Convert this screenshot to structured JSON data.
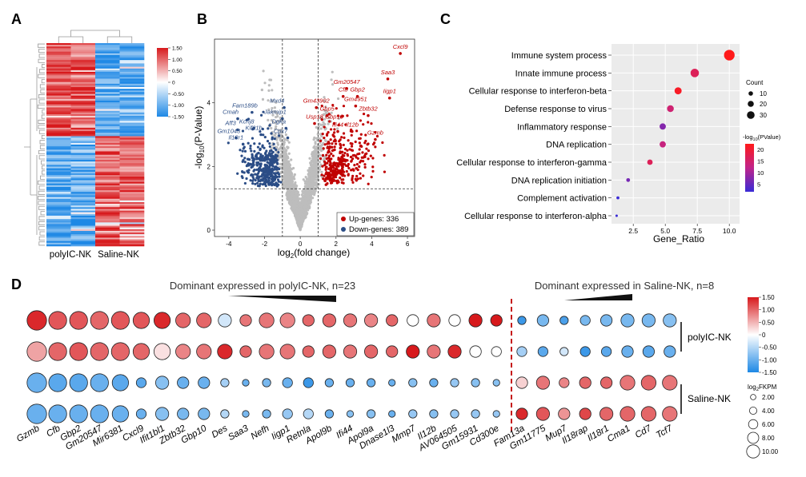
{
  "panels": {
    "A": {
      "letter": "A",
      "columns": [
        "polyIC-NK",
        "Saline-NK"
      ],
      "colorbar_ticks": [
        "1.50",
        "1.00",
        "0.50",
        "0",
        "-0.50",
        "-1.00",
        "-1.50"
      ],
      "colors": {
        "high": "#d7191c",
        "mid": "#ffffff",
        "low": "#1e88e5"
      }
    },
    "B": {
      "letter": "B",
      "chart_data": {
        "type": "scatter",
        "xlabel_pre": "log",
        "xlabel_sub": "2",
        "xlabel_post": "(fold change)",
        "ylabel_pre": "-log",
        "ylabel_sub": "10",
        "ylabel_post": "(P-Value)",
        "xticks": [
          -4,
          -2,
          0,
          2,
          4,
          6
        ],
        "yticks": [
          0,
          2,
          4
        ],
        "xlim": [
          -4.8,
          6.4
        ],
        "ylim": [
          -0.2,
          6.0
        ],
        "thresholds": {
          "x": [
            -1,
            1
          ],
          "y": 1.3
        },
        "legend": [
          {
            "label": "Up-genes: 336",
            "color": "#c00000"
          },
          {
            "label": "Down-genes: 389",
            "color": "#2b4d86"
          }
        ],
        "labels_up": [
          {
            "text": "Cxcl9",
            "x": 5.6,
            "y": 5.7
          },
          {
            "text": "Saa3",
            "x": 4.9,
            "y": 4.9
          },
          {
            "text": "Gm20547",
            "x": 2.6,
            "y": 4.6
          },
          {
            "text": "Iigp1",
            "x": 5.0,
            "y": 4.3
          },
          {
            "text": "Cfb",
            "x": 2.4,
            "y": 4.35
          },
          {
            "text": "Gbp2",
            "x": 3.2,
            "y": 4.35
          },
          {
            "text": "Gm43902",
            "x": 0.9,
            "y": 4.0
          },
          {
            "text": "Gm4951",
            "x": 3.1,
            "y": 4.05
          },
          {
            "text": "Gbp5",
            "x": 1.5,
            "y": 3.75
          },
          {
            "text": "Zbtb32",
            "x": 3.8,
            "y": 3.75
          },
          {
            "text": "Usp18",
            "x": 0.8,
            "y": 3.5
          },
          {
            "text": "Gbp10",
            "x": 1.9,
            "y": 3.5
          },
          {
            "text": "Ifi44",
            "x": 2.1,
            "y": 3.25
          },
          {
            "text": "Il12b",
            "x": 2.9,
            "y": 3.25
          },
          {
            "text": "Gzmb",
            "x": 4.2,
            "y": 3.0
          }
        ],
        "labels_down": [
          {
            "text": "Mxd4",
            "x": -1.3,
            "y": 4.0
          },
          {
            "text": "Fam189b",
            "x": -3.1,
            "y": 3.85
          },
          {
            "text": "Jakmip1",
            "x": -1.4,
            "y": 3.65
          },
          {
            "text": "Cmah",
            "x": -3.9,
            "y": 3.65
          },
          {
            "text": "Kcnj8",
            "x": -3.0,
            "y": 3.35
          },
          {
            "text": "Dgka",
            "x": -1.2,
            "y": 3.35
          },
          {
            "text": "Aff3",
            "x": -3.9,
            "y": 3.3
          },
          {
            "text": "Kif21b",
            "x": -2.6,
            "y": 3.15
          },
          {
            "text": "Cpx7",
            "x": -1.1,
            "y": 3.05
          },
          {
            "text": "Gm1043",
            "x": -4.0,
            "y": 3.05
          },
          {
            "text": "Il18r1",
            "x": -3.6,
            "y": 2.85
          }
        ]
      }
    },
    "C": {
      "letter": "C",
      "chart_data": {
        "type": "scatter",
        "xlabel": "Gene_Ratio",
        "xticks": [
          2.5,
          5.0,
          7.5,
          10.0
        ],
        "xtick_labels": [
          "2.5",
          "5.0",
          "7.5",
          "10.0"
        ],
        "xlim": [
          0.8,
          10.8
        ],
        "terms": [
          {
            "name": "Immune system process",
            "ratio": 10.0,
            "count": 32,
            "logp": 22
          },
          {
            "name": "Innate immune process",
            "ratio": 7.3,
            "count": 24,
            "logp": 17
          },
          {
            "name": "Cellular response to interferon-beta",
            "ratio": 6.0,
            "count": 19,
            "logp": 21
          },
          {
            "name": "Defense response to virus",
            "ratio": 5.4,
            "count": 18,
            "logp": 15
          },
          {
            "name": "Inflammatory response",
            "ratio": 4.8,
            "count": 16,
            "logp": 9
          },
          {
            "name": "DNA replication",
            "ratio": 4.8,
            "count": 16,
            "logp": 14
          },
          {
            "name": "Cellular response to interferon-gamma",
            "ratio": 3.8,
            "count": 13,
            "logp": 17
          },
          {
            "name": "DNA replication initiation",
            "ratio": 2.1,
            "count": 7,
            "logp": 8
          },
          {
            "name": "Complement activation",
            "ratio": 1.3,
            "count": 4,
            "logp": 4
          },
          {
            "name": "Cellular response to interferon-alpha",
            "ratio": 1.2,
            "count": 2,
            "logp": 4
          }
        ],
        "count_legend_title": "Count",
        "count_legend": [
          "10",
          "20",
          "30"
        ],
        "p_legend_title_pre": "-log",
        "p_legend_title_sub": "10",
        "p_legend_title_post": "(PValue)",
        "p_legend_ticks": [
          "20",
          "15",
          "10",
          "5"
        ],
        "p_colors": {
          "high": "#ff1a1a",
          "low": "#3a2bd6"
        }
      }
    },
    "D": {
      "letter": "D",
      "heading_left": "Dominant expressed in polyIC-NK, n=23",
      "heading_right": "Dominant expressed in Saline-NK, n=8",
      "row_group_labels": [
        "polyIC-NK",
        "Saline-NK"
      ],
      "color_legend_ticks": [
        "1.50",
        "1.00",
        "0.50",
        "0",
        "-0.50",
        "-1.00",
        "-1.50"
      ],
      "size_legend_title_pre": "log",
      "size_legend_title_sub": "2",
      "size_legend_title_post": "FKPM",
      "size_legend": [
        "2.00",
        "4.00",
        "6.00",
        "8.00",
        "10.00"
      ],
      "chart_data": {
        "type": "bubble",
        "genes": [
          "Gzmb",
          "Cfb",
          "Gbp2",
          "Gm20547",
          "Mir6381",
          "Cxcl9",
          "Ifit1bl1",
          "Zbtb32",
          "Gbp10",
          "Des",
          "Saa3",
          "Nefh",
          "Iigp1",
          "Retnla",
          "Apol9b",
          "Ifi44",
          "Apol9a",
          "Dnase1l3",
          "Mmp7",
          "Il12b",
          "AV064505",
          "Gm15931",
          "Cd300e",
          "Fam13a",
          "Gm11775",
          "Mup7",
          "Il18rap",
          "Il18r1",
          "Cma1",
          "Cd7",
          "Tcf7"
        ],
        "size": [
          [
            10,
            9,
            9,
            9,
            9,
            8,
            8,
            7,
            7,
            6,
            5,
            7,
            7,
            5,
            6,
            6,
            6,
            5,
            5,
            6,
            5,
            6,
            5,
            3,
            5,
            3,
            4,
            5,
            6,
            6,
            6
          ],
          [
            10,
            9,
            9,
            9,
            9,
            8,
            8,
            7,
            7,
            7,
            5,
            7,
            7,
            5,
            6,
            6,
            6,
            5,
            6,
            6,
            6,
            5,
            4,
            4,
            4,
            3,
            4,
            4,
            5,
            5,
            5
          ],
          [
            10,
            9,
            9,
            9,
            8,
            4,
            6,
            5,
            5,
            3,
            2,
            3,
            4,
            4,
            3,
            3,
            3,
            2,
            3,
            3,
            3,
            3,
            2,
            5,
            6,
            4,
            5,
            5,
            7,
            7,
            7
          ],
          [
            10,
            9,
            9,
            9,
            8,
            4,
            6,
            5,
            5,
            3,
            2,
            3,
            4,
            4,
            3,
            2,
            3,
            2,
            3,
            3,
            3,
            3,
            2,
            5,
            6,
            5,
            5,
            6,
            7,
            7,
            7
          ]
        ],
        "z": [
          [
            1.4,
            1.1,
            1.1,
            1.0,
            1.1,
            1.1,
            1.4,
            1.0,
            1.0,
            -0.3,
            0.9,
            0.9,
            0.8,
            1.0,
            1.0,
            0.9,
            0.8,
            1.0,
            0.0,
            0.9,
            0.0,
            1.5,
            1.5,
            -1.3,
            -0.9,
            -1.2,
            -0.9,
            -0.9,
            -0.9,
            -0.9,
            -0.8
          ],
          [
            0.6,
            1.0,
            1.1,
            1.0,
            1.0,
            1.0,
            0.2,
            0.8,
            0.9,
            1.4,
            1.0,
            0.9,
            0.9,
            1.0,
            1.0,
            0.9,
            1.0,
            1.0,
            1.5,
            0.9,
            1.4,
            0.0,
            0.0,
            -0.6,
            -1.1,
            -0.3,
            -1.3,
            -1.1,
            -1.0,
            -1.1,
            -1.0
          ],
          [
            -1.0,
            -1.1,
            -1.1,
            -1.0,
            -1.1,
            -1.1,
            -0.8,
            -1.0,
            -1.0,
            -0.6,
            -1.0,
            -0.9,
            -1.0,
            -1.3,
            -1.0,
            -1.0,
            -1.0,
            -1.0,
            -0.8,
            -1.0,
            -0.7,
            -0.8,
            -0.8,
            0.3,
            0.9,
            0.8,
            1.0,
            1.0,
            0.9,
            1.0,
            0.9
          ],
          [
            -1.0,
            -1.0,
            -1.0,
            -1.0,
            -1.0,
            -1.0,
            -0.8,
            -0.9,
            -0.9,
            -0.5,
            -0.9,
            -0.9,
            -0.7,
            -0.5,
            -1.0,
            -0.8,
            -0.8,
            -1.0,
            -0.7,
            -0.8,
            -0.7,
            -0.7,
            -0.7,
            1.4,
            1.1,
            0.7,
            1.2,
            1.0,
            1.0,
            1.0,
            0.9
          ]
        ]
      }
    }
  }
}
